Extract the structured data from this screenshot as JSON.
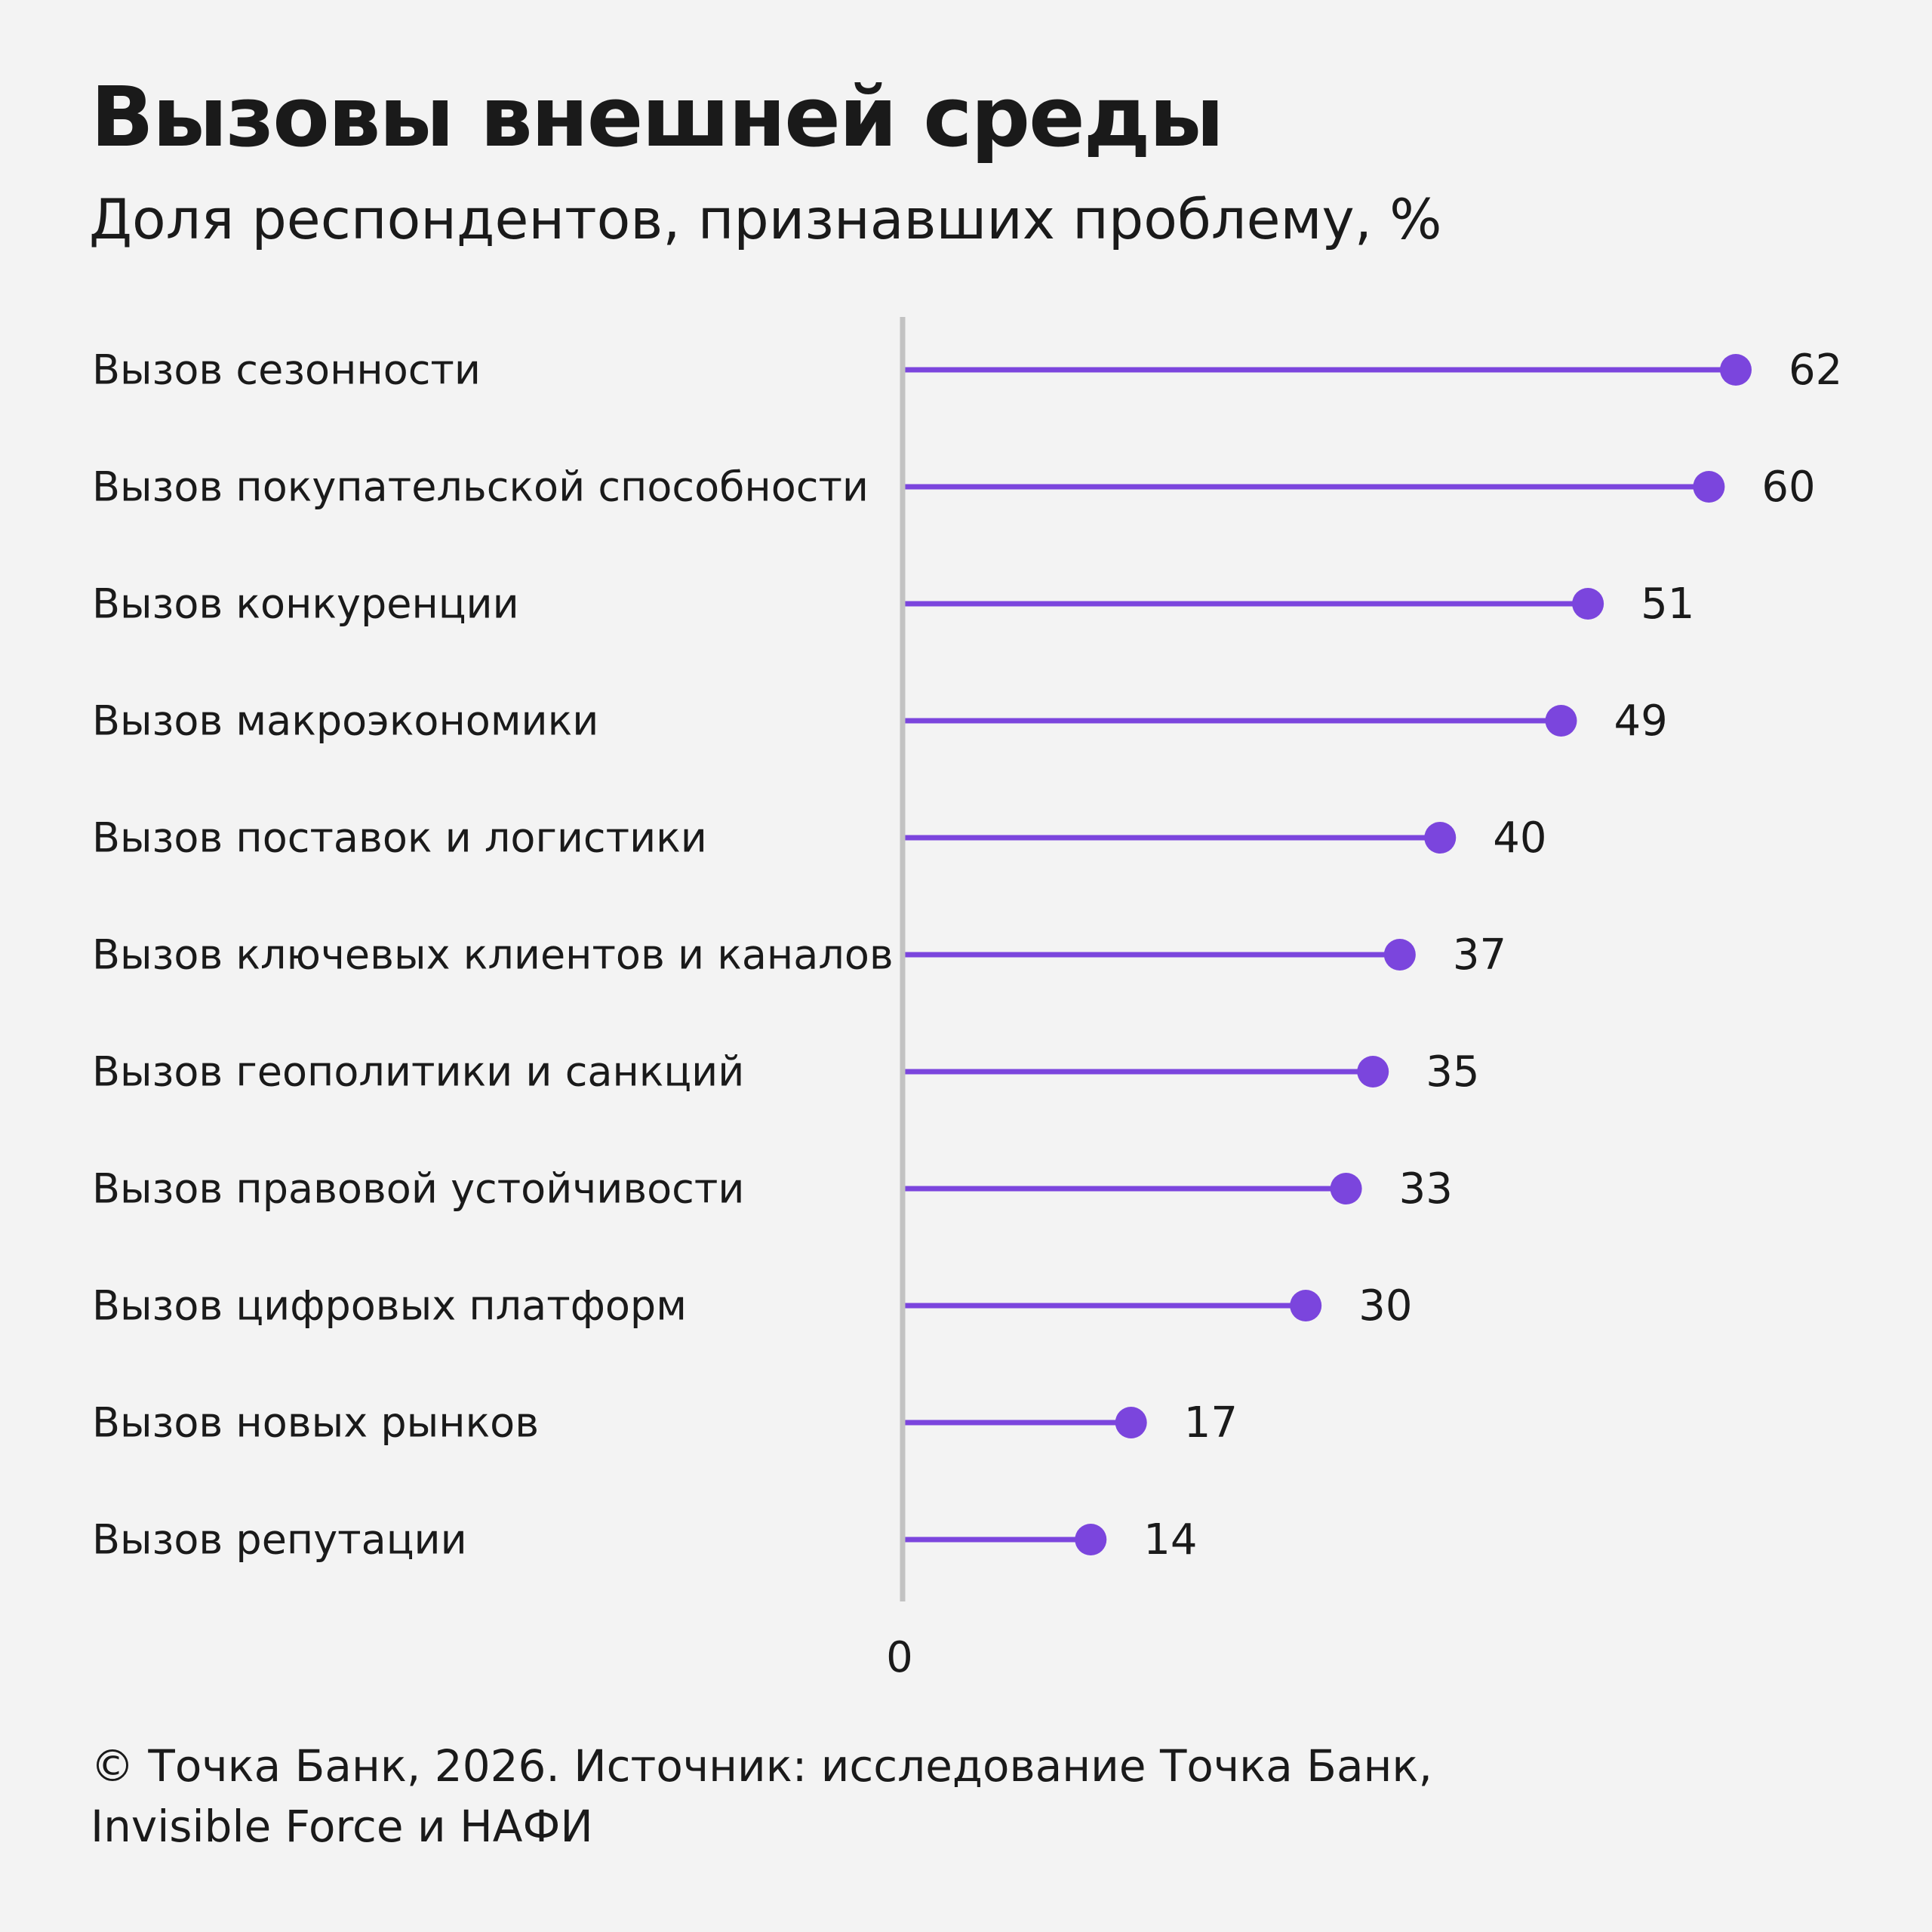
{
  "header": {
    "title": "Вызовы внешней среды",
    "subtitle": "Доля респондентов, признавших проблему, %"
  },
  "footer": {
    "line1": "© Точка Банк, 2026. Источник: исследование Точка Банк,",
    "line2": "Invisible Force и НАФИ"
  },
  "colors": {
    "accent": "#7b45dd",
    "axis": "#c2c2c2",
    "background": "#f3f3f3"
  },
  "chart_data": {
    "type": "lollipop",
    "title": "Вызовы внешней среды",
    "subtitle": "Доля респондентов, признавших проблему, %",
    "categories": [
      "Вызов сезонности",
      "Вызов покупательской способности",
      "Вызов конкуренции",
      "Вызов макроэкономики",
      "Вызов поставок и логистики",
      "Вызов ключевых клиентов и каналов",
      "Вызов геополитики и санкций",
      "Вызов правовой устойчивости",
      "Вызов цифровых платформ",
      "Вызов новых рынков",
      "Вызов репутации"
    ],
    "values": [
      62,
      60,
      51,
      49,
      40,
      37,
      35,
      33,
      30,
      17,
      14
    ],
    "xlim": [
      0,
      62
    ],
    "x_tick_labels": [
      "0"
    ],
    "grid": false,
    "legend": "none"
  }
}
